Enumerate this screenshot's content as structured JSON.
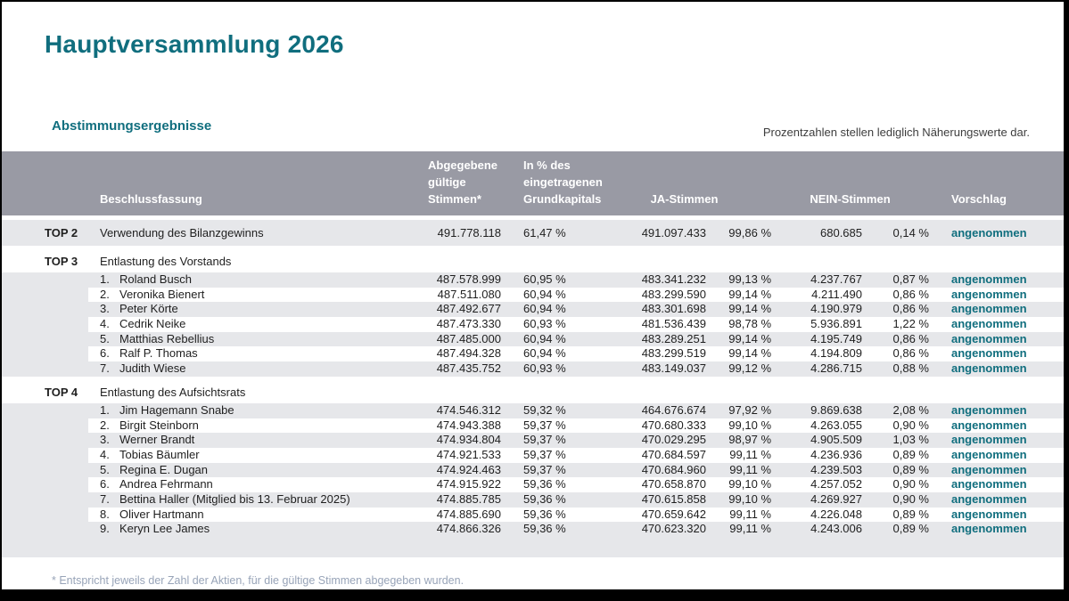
{
  "page": {
    "title": "Hauptversammlung 2026",
    "section_heading": "Abstimmungsergebnisse",
    "note": "Prozentzahlen stellen lediglich Näherungswerte dar.",
    "footnote": "* Entspricht jeweils der Zahl der Aktien, für die gültige Stimmen abgegeben wurden."
  },
  "colors": {
    "accent_teal": "#106e7e",
    "header_bg": "#999aa4",
    "stripe_bg": "#e6e7ea",
    "footnote_text": "#98a4b8"
  },
  "table": {
    "headers": {
      "beschlussfassung": "Beschlussfassung",
      "abgegebene": "Abgegebene gültige Stimmen*",
      "grundkapital": "In % des eingetragenen Grundkapitals",
      "ja": "JA-Stimmen",
      "nein": "NEIN-Stimmen",
      "vorschlag": "Vorschlag"
    },
    "sections": [
      {
        "top": "TOP 2",
        "title": "Verwendung des Bilanzgewinns",
        "row": {
          "stimmen": "491.778.118",
          "kapital_pct": "61,47 %",
          "ja": "491.097.433",
          "ja_pct": "99,86 %",
          "nein": "680.685",
          "nein_pct": "0,14 %",
          "vorschlag": "angenommen"
        },
        "items": []
      },
      {
        "top": "TOP 3",
        "title": "Entlastung des Vorstands",
        "row": null,
        "items": [
          {
            "num": "1.",
            "name": "Roland Busch",
            "stimmen": "487.578.999",
            "kapital_pct": "60,95 %",
            "ja": "483.341.232",
            "ja_pct": "99,13 %",
            "nein": "4.237.767",
            "nein_pct": "0,87 %",
            "vorschlag": "angenommen"
          },
          {
            "num": "2.",
            "name": "Veronika Bienert",
            "stimmen": "487.511.080",
            "kapital_pct": "60,94 %",
            "ja": "483.299.590",
            "ja_pct": "99,14 %",
            "nein": "4.211.490",
            "nein_pct": "0,86 %",
            "vorschlag": "angenommen"
          },
          {
            "num": "3.",
            "name": "Peter Körte",
            "stimmen": "487.492.677",
            "kapital_pct": "60,94 %",
            "ja": "483.301.698",
            "ja_pct": "99,14 %",
            "nein": "4.190.979",
            "nein_pct": "0,86 %",
            "vorschlag": "angenommen"
          },
          {
            "num": "4.",
            "name": "Cedrik Neike",
            "stimmen": "487.473.330",
            "kapital_pct": "60,93 %",
            "ja": "481.536.439",
            "ja_pct": "98,78 %",
            "nein": "5.936.891",
            "nein_pct": "1,22 %",
            "vorschlag": "angenommen"
          },
          {
            "num": "5.",
            "name": "Matthias Rebellius",
            "stimmen": "487.485.000",
            "kapital_pct": "60,94 %",
            "ja": "483.289.251",
            "ja_pct": "99,14 %",
            "nein": "4.195.749",
            "nein_pct": "0,86 %",
            "vorschlag": "angenommen"
          },
          {
            "num": "6.",
            "name": "Ralf P. Thomas",
            "stimmen": "487.494.328",
            "kapital_pct": "60,94 %",
            "ja": "483.299.519",
            "ja_pct": "99,14 %",
            "nein": "4.194.809",
            "nein_pct": "0,86 %",
            "vorschlag": "angenommen"
          },
          {
            "num": "7.",
            "name": "Judith Wiese",
            "stimmen": "487.435.752",
            "kapital_pct": "60,93 %",
            "ja": "483.149.037",
            "ja_pct": "99,12 %",
            "nein": "4.286.715",
            "nein_pct": "0,88 %",
            "vorschlag": "angenommen"
          }
        ]
      },
      {
        "top": "TOP 4",
        "title": "Entlastung des Aufsichtsrats",
        "row": null,
        "items": [
          {
            "num": "1.",
            "name": "Jim Hagemann Snabe",
            "stimmen": "474.546.312",
            "kapital_pct": "59,32 %",
            "ja": "464.676.674",
            "ja_pct": "97,92 %",
            "nein": "9.869.638",
            "nein_pct": "2,08 %",
            "vorschlag": "angenommen"
          },
          {
            "num": "2.",
            "name": "Birgit Steinborn",
            "stimmen": "474.943.388",
            "kapital_pct": "59,37 %",
            "ja": "470.680.333",
            "ja_pct": "99,10 %",
            "nein": "4.263.055",
            "nein_pct": "0,90 %",
            "vorschlag": "angenommen"
          },
          {
            "num": "3.",
            "name": "Werner Brandt",
            "stimmen": "474.934.804",
            "kapital_pct": "59,37 %",
            "ja": "470.029.295",
            "ja_pct": "98,97 %",
            "nein": "4.905.509",
            "nein_pct": "1,03 %",
            "vorschlag": "angenommen"
          },
          {
            "num": "4.",
            "name": "Tobias Bäumler",
            "stimmen": "474.921.533",
            "kapital_pct": "59,37 %",
            "ja": "470.684.597",
            "ja_pct": "99,11 %",
            "nein": "4.236.936",
            "nein_pct": "0,89 %",
            "vorschlag": "angenommen"
          },
          {
            "num": "5.",
            "name": "Regina E. Dugan",
            "stimmen": "474.924.463",
            "kapital_pct": "59,37 %",
            "ja": "470.684.960",
            "ja_pct": "99,11 %",
            "nein": "4.239.503",
            "nein_pct": "0,89 %",
            "vorschlag": "angenommen"
          },
          {
            "num": "6.",
            "name": "Andrea Fehrmann",
            "stimmen": "474.915.922",
            "kapital_pct": "59,36 %",
            "ja": "470.658.870",
            "ja_pct": "99,10 %",
            "nein": "4.257.052",
            "nein_pct": "0,90 %",
            "vorschlag": "angenommen"
          },
          {
            "num": "7.",
            "name": "Bettina Haller (Mitglied bis 13. Februar 2025)",
            "stimmen": "474.885.785",
            "kapital_pct": "59,36 %",
            "ja": "470.615.858",
            "ja_pct": "99,10 %",
            "nein": "4.269.927",
            "nein_pct": "0,90 %",
            "vorschlag": "angenommen"
          },
          {
            "num": "8.",
            "name": "Oliver Hartmann",
            "stimmen": "474.885.690",
            "kapital_pct": "59,36 %",
            "ja": "470.659.642",
            "ja_pct": "99,11 %",
            "nein": "4.226.048",
            "nein_pct": "0,89 %",
            "vorschlag": "angenommen"
          },
          {
            "num": "9.",
            "name": "Keryn Lee James",
            "stimmen": "474.866.326",
            "kapital_pct": "59,36 %",
            "ja": "470.623.320",
            "ja_pct": "99,11 %",
            "nein": "4.243.006",
            "nein_pct": "0,89 %",
            "vorschlag": "angenommen"
          }
        ]
      }
    ]
  }
}
